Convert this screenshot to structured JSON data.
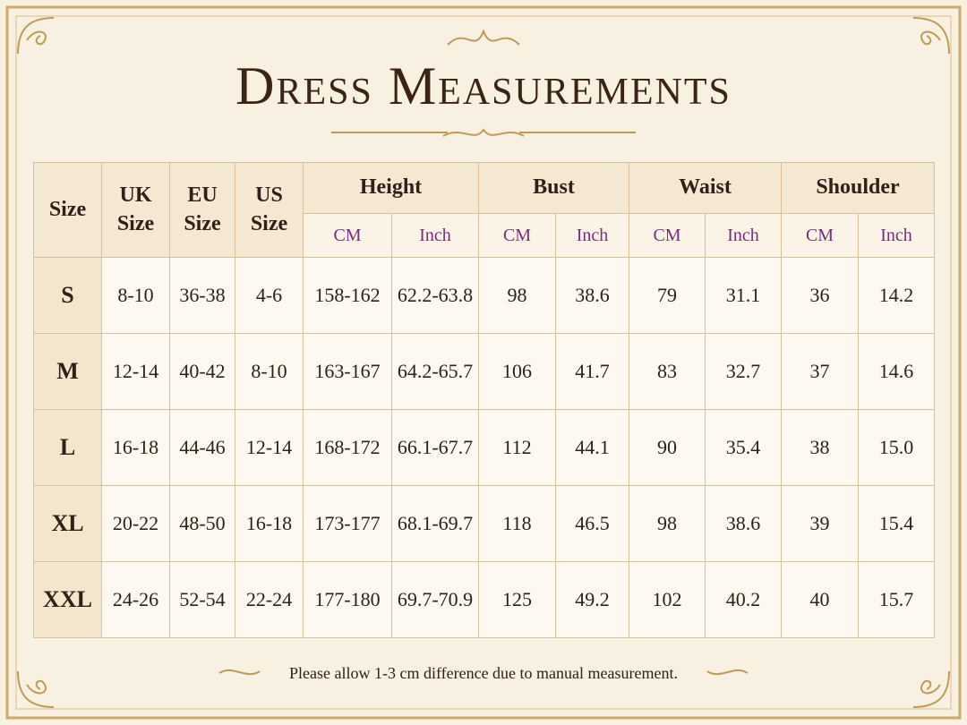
{
  "title": "Dress Measurements",
  "table": {
    "headers": [
      "Size",
      "UK Size",
      "EU Size",
      "US Size"
    ],
    "groups": [
      "Height",
      "Bust",
      "Waist",
      "Shoulder"
    ],
    "subheaders": [
      "CM",
      "Inch",
      "CM",
      "Inch",
      "CM",
      "Inch",
      "CM",
      "Inch"
    ],
    "rows": [
      [
        "S",
        "8-10",
        "36-38",
        "4-6",
        "158-162",
        "62.2-63.8",
        "98",
        "38.6",
        "79",
        "31.1",
        "36",
        "14.2"
      ],
      [
        "M",
        "12-14",
        "40-42",
        "8-10",
        "163-167",
        "64.2-65.7",
        "106",
        "41.7",
        "83",
        "32.7",
        "37",
        "14.6"
      ],
      [
        "L",
        "16-18",
        "44-46",
        "12-14",
        "168-172",
        "66.1-67.7",
        "112",
        "44.1",
        "90",
        "35.4",
        "38",
        "15.0"
      ],
      [
        "XL",
        "20-22",
        "48-50",
        "16-18",
        "173-177",
        "68.1-69.7",
        "118",
        "46.5",
        "98",
        "38.6",
        "39",
        "15.4"
      ],
      [
        "XXL",
        "24-26",
        "52-54",
        "22-24",
        "177-180",
        "69.7-70.9",
        "125",
        "49.2",
        "102",
        "40.2",
        "40",
        "15.7"
      ]
    ]
  },
  "footnote": "Please allow 1-3 cm difference due to manual measurement."
}
